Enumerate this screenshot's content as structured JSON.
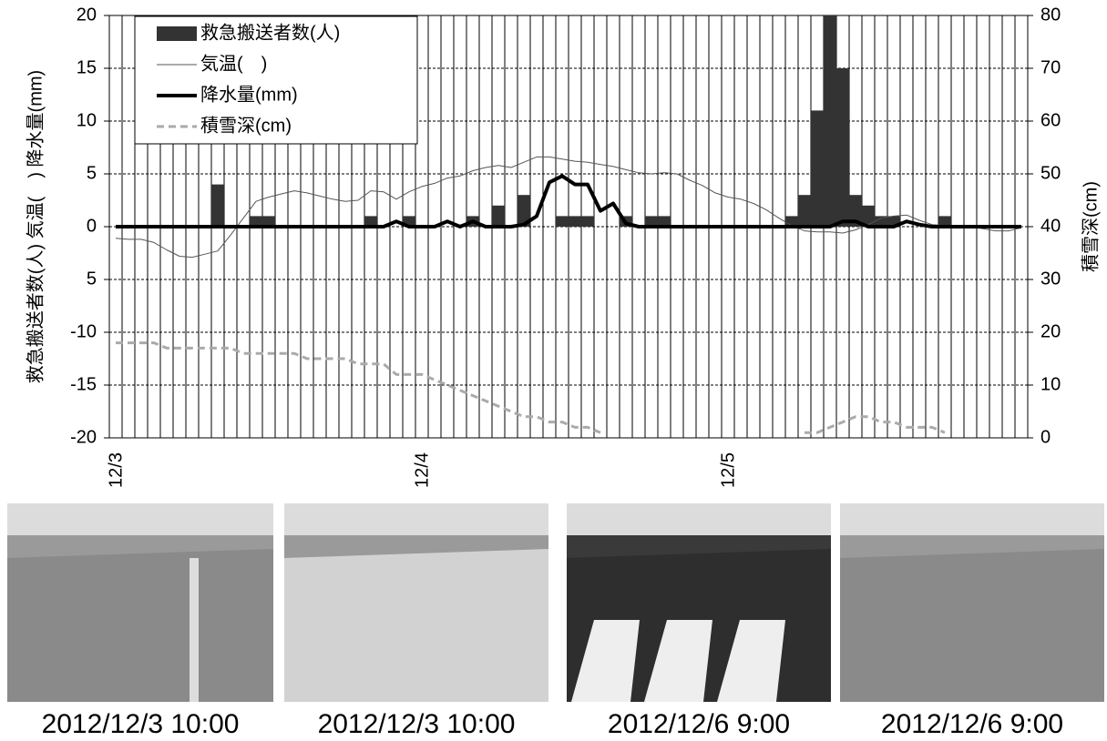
{
  "chart_data": {
    "type": "combo",
    "categories": [
      "12/3",
      null,
      null,
      null,
      null,
      null,
      null,
      null,
      null,
      null,
      null,
      null,
      null,
      null,
      null,
      null,
      null,
      null,
      null,
      null,
      null,
      null,
      null,
      null,
      "12/4",
      null,
      null,
      null,
      null,
      null,
      null,
      null,
      null,
      null,
      null,
      null,
      null,
      null,
      null,
      null,
      null,
      null,
      null,
      null,
      null,
      null,
      null,
      null,
      "12/5",
      null,
      null,
      null,
      null,
      null,
      null,
      null,
      null,
      null,
      null,
      null,
      null,
      null,
      null,
      null,
      null,
      null,
      null,
      null,
      null,
      null,
      null,
      null
    ],
    "ylabel": "救急搬送者数(人) 気温(　) 降水量(mm)",
    "y2label": "積雪深(cm)",
    "ylim": [
      -20,
      20
    ],
    "yticks": [
      20,
      15,
      10,
      5,
      0,
      {
        "value": -5,
        "label": "5"
      },
      -10,
      -15,
      -20
    ],
    "y2lim": [
      0,
      80
    ],
    "y2ticks": [
      80,
      70,
      60,
      50,
      40,
      30,
      20,
      10,
      0
    ],
    "grid": true,
    "series": [
      {
        "name": "救急搬送者数(人)",
        "type": "bar",
        "color": "#333333",
        "values": [
          0,
          0,
          0,
          0,
          0,
          0,
          0,
          0,
          4,
          0,
          0,
          1,
          1,
          0,
          0,
          0,
          0,
          0,
          0,
          0,
          1,
          0,
          0,
          1,
          0,
          0,
          0,
          0,
          1,
          0,
          2,
          0,
          3,
          0,
          0,
          1,
          1,
          1,
          0,
          0,
          1,
          0,
          1,
          1,
          0,
          0,
          0,
          0,
          0,
          0,
          0,
          0,
          0,
          1,
          3,
          11,
          20,
          15,
          3,
          2,
          1,
          1,
          0,
          0,
          0,
          1,
          0,
          0,
          0,
          0,
          0,
          0
        ]
      },
      {
        "name": "気温(　)",
        "type": "line",
        "color": "#555555",
        "width": 1,
        "values": [
          -1.1,
          -1.2,
          -1.2,
          -1.5,
          -2.2,
          -2.8,
          -2.9,
          -2.6,
          -2.3,
          -0.8,
          0.8,
          2.4,
          2.8,
          3.1,
          3.4,
          3.2,
          2.9,
          2.6,
          2.4,
          2.5,
          3.4,
          3.3,
          2.6,
          3.3,
          3.8,
          4.1,
          4.6,
          4.8,
          5.3,
          5.6,
          5.8,
          5.6,
          6.1,
          6.6,
          6.6,
          6.4,
          6.2,
          6.1,
          5.9,
          5.7,
          5.4,
          5.1,
          5.0,
          5.1,
          5.0,
          4.4,
          3.9,
          3.2,
          2.8,
          2.6,
          2.2,
          1.6,
          0.8,
          0.1,
          -0.4,
          -0.5,
          -0.5,
          -0.6,
          -0.3,
          0.2,
          0.8,
          1.0,
          1.1,
          0.6,
          0.2,
          0.1,
          0.1,
          0.0,
          -0.2,
          -0.4,
          -0.4,
          -0.1
        ]
      },
      {
        "name": "降水量(mm)",
        "type": "line",
        "color": "#000000",
        "width": 4,
        "values": [
          0,
          0,
          0,
          0,
          0,
          0,
          0,
          0,
          0,
          0,
          0,
          0,
          0,
          0,
          0,
          0,
          0,
          0,
          0,
          0,
          0,
          0,
          0.5,
          0,
          0,
          0,
          0.5,
          0,
          0.5,
          0,
          0,
          0,
          0.2,
          1.0,
          4.2,
          4.8,
          4.0,
          4.0,
          1.5,
          2.2,
          0.3,
          0,
          0,
          0,
          0,
          0,
          0,
          0,
          0,
          0,
          0,
          0,
          0,
          0,
          0,
          0,
          0,
          0.5,
          0.5,
          0,
          0,
          0,
          0.5,
          0.2,
          0,
          0,
          0,
          0,
          0,
          0,
          0,
          0
        ]
      },
      {
        "name": "積雪深(cm)",
        "type": "line",
        "axis": "y2",
        "color": "#aaaaaa",
        "width": 3,
        "dash": true,
        "values": [
          18,
          18,
          18,
          18,
          17,
          17,
          17,
          17,
          17,
          17,
          16,
          16,
          16,
          16,
          16,
          15,
          15,
          15,
          15,
          14,
          14,
          14,
          12,
          12,
          12,
          11,
          10,
          9,
          8,
          7,
          6,
          5,
          4,
          4,
          3,
          3,
          2,
          2,
          1,
          null,
          null,
          null,
          null,
          null,
          null,
          null,
          null,
          null,
          null,
          null,
          null,
          null,
          null,
          null,
          1,
          1,
          2,
          3,
          4,
          4,
          3,
          3,
          2,
          2,
          2,
          1,
          null,
          null,
          null,
          null,
          null,
          null
        ]
      }
    ],
    "photos": [
      {
        "caption": "2012/12/3 10:00"
      },
      {
        "caption": "2012/12/3 10:00"
      },
      {
        "caption": "2012/12/6 9:00"
      },
      {
        "caption": "2012/12/6 9:00"
      }
    ]
  }
}
